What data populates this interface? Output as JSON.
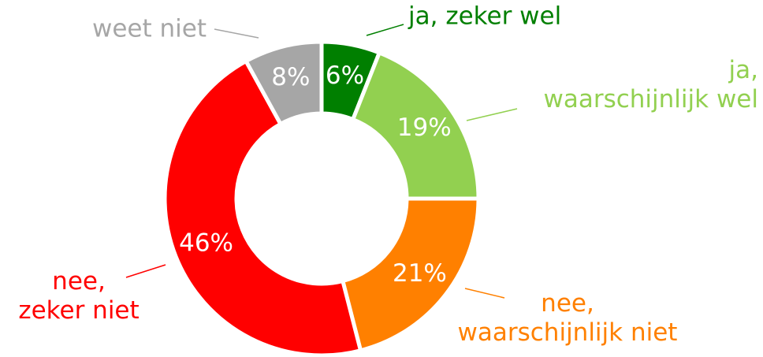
{
  "chart_data": {
    "type": "donut",
    "categories": [
      "ja, zeker wel",
      "ja,\nwaarschijnlijk wel",
      "nee,\nwaarschijnlijk niet",
      "nee,\nzeker niet",
      "weet niet"
    ],
    "values": [
      6,
      19,
      21,
      46,
      8
    ],
    "value_labels": [
      "6%",
      "19%",
      "21%",
      "46%",
      "8%"
    ],
    "colors": [
      "#007f00",
      "#92d050",
      "#ff8000",
      "#ff0000",
      "#a6a6a6"
    ]
  }
}
